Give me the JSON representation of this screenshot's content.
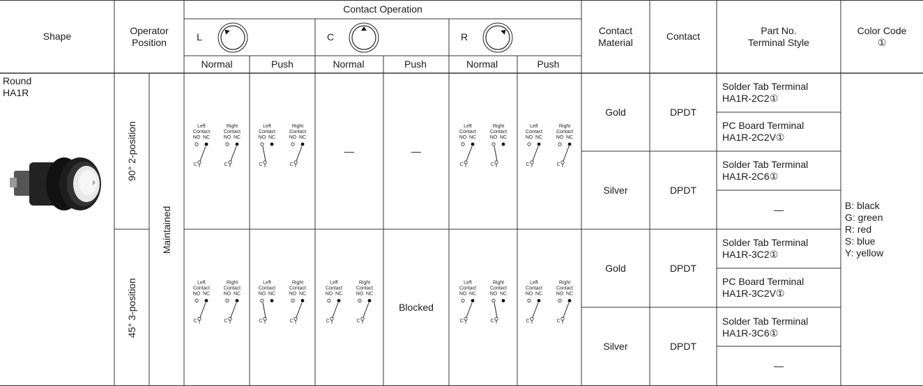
{
  "header": {
    "shape": "Shape",
    "operator_position": "Operator Position",
    "contact_operation": "Contact Operation",
    "positions": [
      "L",
      "C",
      "R"
    ],
    "normal": "Normal",
    "push": "Push",
    "contact_material": "Contact Material",
    "contact": "Contact",
    "part_no": "Part No.",
    "terminal_style": "Terminal Style",
    "color_code": "Color Code",
    "color_code_note": "①"
  },
  "product": {
    "shape": "Round",
    "model": "HA1R",
    "mode": "Maintained"
  },
  "switch_diagram": {
    "left": "Left",
    "right": "Right",
    "contact": "Contact",
    "no": "NO",
    "nc": "NC",
    "c": "C"
  },
  "groups": [
    {
      "position": "90° 2-position",
      "c_normal": "—",
      "c_push": "—",
      "rows": [
        {
          "material": "Gold",
          "contact": "DPDT",
          "parts": [
            {
              "terminal": "Solder Tab Terminal",
              "part_no": "HA1R-2C2①"
            },
            {
              "terminal": "PC Board Terminal",
              "part_no": "HA1R-2C2V①"
            }
          ]
        },
        {
          "material": "Silver",
          "contact": "DPDT",
          "parts": [
            {
              "terminal": "Solder Tab Terminal",
              "part_no": "HA1R-2C6①"
            },
            {
              "part_no": "—"
            }
          ]
        }
      ]
    },
    {
      "position": "45° 3-position",
      "c_push": "Blocked",
      "rows": [
        {
          "material": "Gold",
          "contact": "DPDT",
          "parts": [
            {
              "terminal": "Solder Tab Terminal",
              "part_no": "HA1R-3C2①"
            },
            {
              "terminal": "PC Board Terminal",
              "part_no": "HA1R-3C2V①"
            }
          ]
        },
        {
          "material": "Silver",
          "contact": "DPDT",
          "parts": [
            {
              "terminal": "Solder Tab Terminal",
              "part_no": "HA1R-3C6①"
            },
            {
              "part_no": "—"
            }
          ]
        }
      ]
    }
  ],
  "color_codes": [
    "B: black",
    "G: green",
    "R: red",
    "S: blue",
    "Y: yellow"
  ]
}
